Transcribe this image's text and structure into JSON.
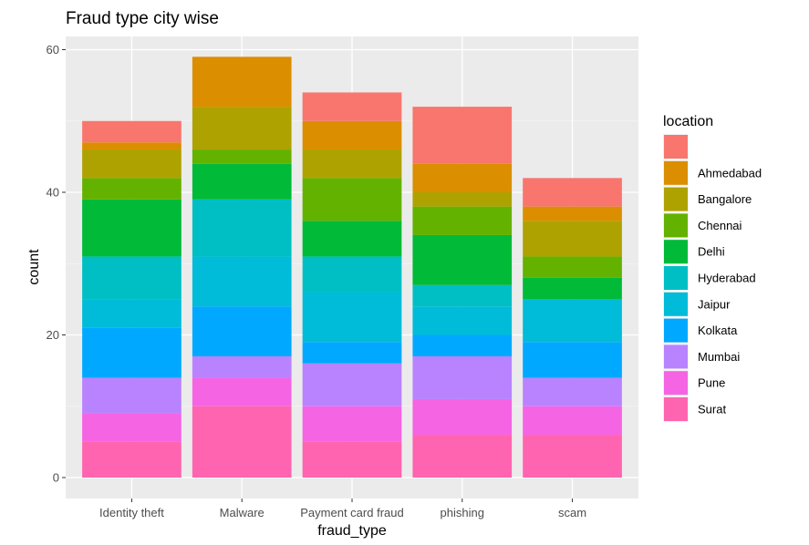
{
  "chart_data": {
    "type": "bar",
    "stacked": true,
    "title": "Fraud type city wise",
    "xlabel": "fraud_type",
    "ylabel": "count",
    "ylim": [
      0,
      61
    ],
    "yticks": [
      0,
      20,
      40,
      60
    ],
    "grid": true,
    "legend_position": "right",
    "legend_title": "location",
    "categories": [
      "Identity theft",
      "Malware",
      "Payment card fraud",
      "phishing",
      "scam"
    ],
    "series": [
      {
        "name": "Surat",
        "color": "#FF64B0",
        "values": [
          5,
          10,
          5,
          6,
          6
        ]
      },
      {
        "name": "Pune",
        "color": "#F564E3",
        "values": [
          4,
          4,
          5,
          5,
          4
        ]
      },
      {
        "name": "Mumbai",
        "color": "#B983FF",
        "values": [
          5,
          3,
          6,
          6,
          4
        ]
      },
      {
        "name": "Kolkata",
        "color": "#00A9FF",
        "values": [
          7,
          7,
          3,
          3,
          5
        ]
      },
      {
        "name": "Jaipur",
        "color": "#00BCD8",
        "values": [
          4,
          7,
          7,
          4,
          6
        ]
      },
      {
        "name": "Hyderabad",
        "color": "#00BFC4",
        "values": [
          6,
          8,
          5,
          3,
          0
        ]
      },
      {
        "name": "Delhi",
        "color": "#00BA38",
        "values": [
          8,
          5,
          5,
          7,
          3
        ]
      },
      {
        "name": "Chennai",
        "color": "#64B200",
        "values": [
          3,
          2,
          6,
          4,
          3
        ]
      },
      {
        "name": "Bangalore",
        "color": "#AEA200",
        "values": [
          4,
          6,
          4,
          2,
          5
        ]
      },
      {
        "name": "Ahmedabad",
        "color": "#DB8E00",
        "values": [
          1,
          7,
          4,
          4,
          2
        ]
      },
      {
        "name": "",
        "color": "#F8766D",
        "values": [
          3,
          0,
          4,
          8,
          4
        ]
      }
    ],
    "legend_order": [
      "",
      "Ahmedabad",
      "Bangalore",
      "Chennai",
      "Delhi",
      "Hyderabad",
      "Jaipur",
      "Kolkata",
      "Mumbai",
      "Pune",
      "Surat"
    ]
  }
}
